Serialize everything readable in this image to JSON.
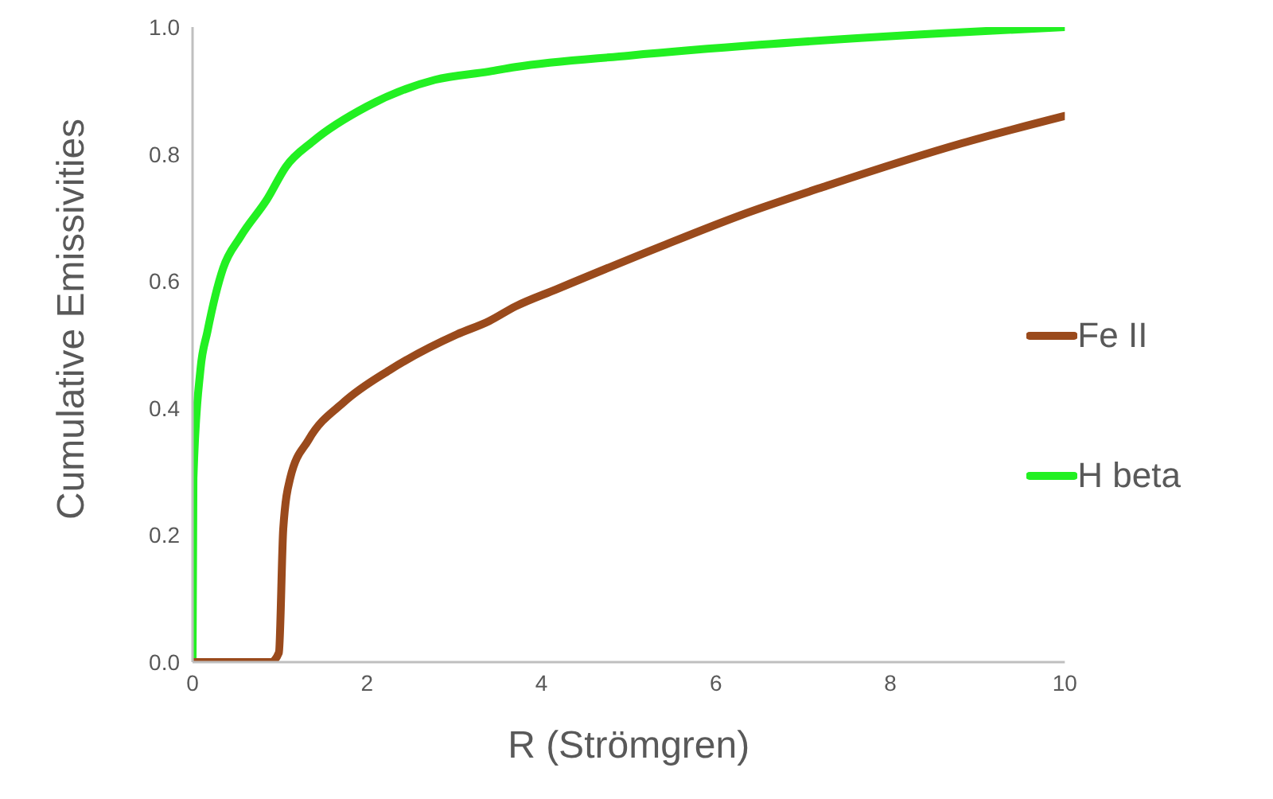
{
  "chart_data": {
    "type": "line",
    "xlabel": "R (Strömgren)",
    "ylabel": "Cumulative Emissivities",
    "xlim": [
      0,
      10
    ],
    "xticks": [
      0,
      2,
      4,
      6,
      8,
      10
    ],
    "ylim": [
      0,
      1
    ],
    "yticks": [
      {
        "value": 0,
        "label": "0.0"
      },
      {
        "value": 0.2,
        "label": "0.2"
      },
      {
        "value": 0.4,
        "label": "0.4"
      },
      {
        "value": 0.6,
        "label": "0.6"
      },
      {
        "value": 0.8,
        "label": "0.8"
      },
      {
        "value": 1,
        "label": "1.0"
      }
    ],
    "grid": false,
    "legend": "right",
    "marker": "none",
    "line_style": "solid",
    "series": [
      {
        "name": "H beta",
        "color": "#22f022",
        "x": [
          0,
          0.01,
          0.09,
          0.17,
          0.35,
          0.55,
          0.86,
          1.07,
          1.38,
          2.0,
          2.78,
          3.4,
          3.7,
          5.0,
          6.5,
          8.56,
          10
        ],
        "values": [
          0,
          0.29,
          0.46,
          0.52,
          0.62,
          0.67,
          0.73,
          0.78,
          0.82,
          0.875,
          0.917,
          0.93,
          0.937,
          0.955,
          0.972,
          0.99,
          1.0
        ]
      },
      {
        "name": "Fe II",
        "color": "#9a4a1c",
        "x": [
          0,
          0.9,
          0.99,
          1.04,
          1.12,
          1.33,
          1.74,
          2.26,
          3.03,
          3.4,
          3.7,
          4.17,
          5.36,
          6.29,
          7.27,
          8.82,
          10
        ],
        "values": [
          0,
          0,
          0.015,
          0.21,
          0.29,
          0.35,
          0.41,
          0.46,
          0.516,
          0.537,
          0.56,
          0.587,
          0.654,
          0.704,
          0.75,
          0.817,
          0.86
        ]
      }
    ]
  }
}
